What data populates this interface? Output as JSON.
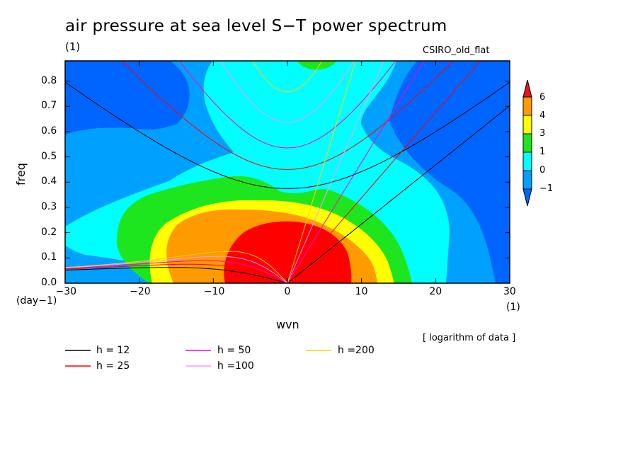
{
  "chart_data": {
    "type": "heatmap",
    "title": "air pressure at sea level S−T power spectrum",
    "units": "(1)",
    "source_label": "CSIRO_old_flat",
    "xlabel": "wvn",
    "ylabel": "freq",
    "x_units": "(1)",
    "y_units": "(day−1)",
    "xlim": [
      -30,
      30
    ],
    "ylim": [
      0,
      0.88
    ],
    "x_ticks": [
      -30,
      -20,
      -10,
      0,
      10,
      20,
      30
    ],
    "x_tick_labels": [
      "−30",
      "−20",
      "−10",
      "0",
      "10",
      "20",
      "30"
    ],
    "y_ticks": [
      0,
      0.1,
      0.2,
      0.3,
      0.4,
      0.5,
      0.6,
      0.7,
      0.8
    ],
    "y_tick_labels": [
      "0.0",
      "0.1",
      "0.2",
      "0.3",
      "0.4",
      "0.5",
      "0.6",
      "0.7",
      "0.8"
    ],
    "data_note": "[ logarithm of data ]",
    "colorbar": {
      "levels": [
        "6",
        "4",
        "3",
        "1",
        "0",
        "−1"
      ],
      "colors": [
        "#e8141c",
        "#ff9a00",
        "#ffff00",
        "#1ee61e",
        "#00ffff",
        "#00a0ff",
        "#0064ff"
      ]
    },
    "dispersion_legend": [
      {
        "label": "h = 12",
        "color": "#000000",
        "h": 12
      },
      {
        "label": "h = 25",
        "color": "#ff0000",
        "h": 25
      },
      {
        "label": "h = 50",
        "color": "#ff00c8",
        "h": 50
      },
      {
        "label": "h =100",
        "color": "#ff96ff",
        "h": 100
      },
      {
        "label": "h =200",
        "color": "#ffd200",
        "h": 200
      }
    ]
  }
}
